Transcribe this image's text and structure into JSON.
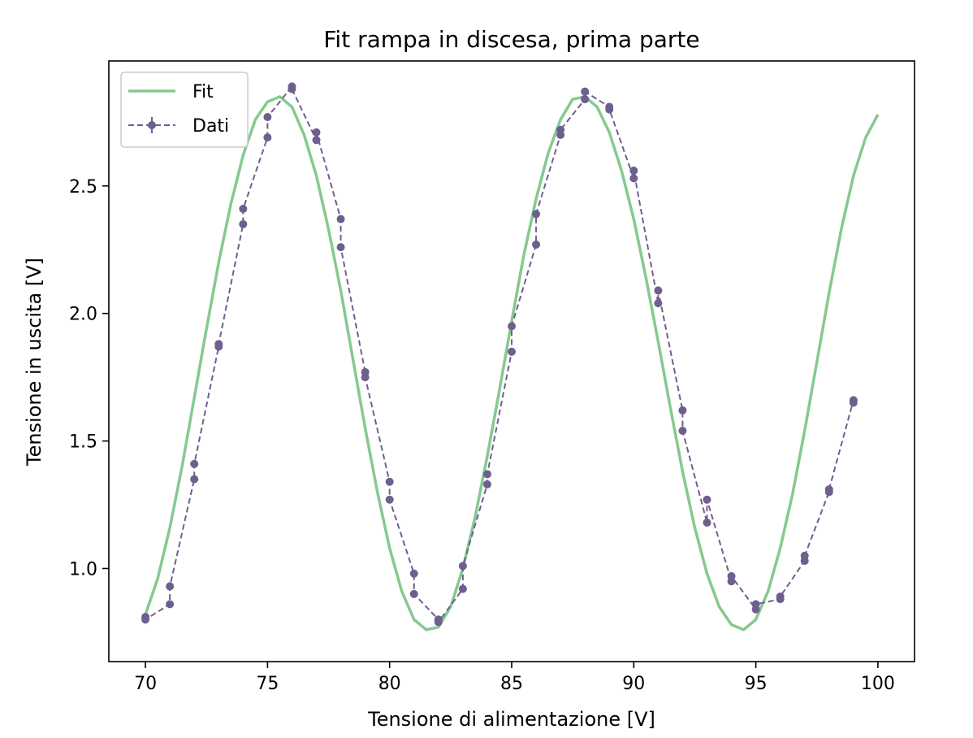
{
  "chart_data": {
    "type": "line",
    "title": "Fit rampa in discesa, prima parte",
    "xlabel": "Tensione di alimentazione [V]",
    "ylabel": "Tensione in uscita [V]",
    "xlim": [
      68.5,
      101.5
    ],
    "ylim": [
      0.635,
      2.99
    ],
    "xticks": [
      70,
      75,
      80,
      85,
      90,
      95,
      100
    ],
    "xtick_labels": [
      "70",
      "75",
      "80",
      "85",
      "90",
      "95",
      "100"
    ],
    "yticks": [
      1.0,
      1.5,
      2.0,
      2.5
    ],
    "ytick_labels": [
      "1.0",
      "1.5",
      "2.0",
      "2.5"
    ],
    "grid": false,
    "legend_position": "top-left",
    "legend": [
      "Fit",
      "Dati"
    ],
    "colors": {
      "fit": "#86c98f",
      "data": "#6f5f8f",
      "axes": "#000000"
    },
    "series": [
      {
        "name": "Fit",
        "style": "solid-line",
        "x": [
          70,
          70.5,
          71,
          71.5,
          72,
          72.5,
          73,
          73.5,
          74,
          74.5,
          75,
          75.5,
          76,
          76.5,
          77,
          77.5,
          78,
          78.5,
          79,
          79.5,
          80,
          80.5,
          81,
          81.5,
          82,
          82.5,
          83,
          83.5,
          84,
          84.5,
          85,
          85.5,
          86,
          86.5,
          87,
          87.5,
          88,
          88.5,
          89,
          89.5,
          90,
          90.5,
          91,
          91.5,
          92,
          92.5,
          93,
          93.5,
          94,
          94.5,
          95,
          95.5,
          96,
          96.5,
          97,
          97.5,
          98,
          98.5,
          99,
          99.5,
          100
        ],
        "y": [
          0.82,
          0.96,
          1.16,
          1.4,
          1.67,
          1.94,
          2.2,
          2.43,
          2.62,
          2.76,
          2.83,
          2.85,
          2.81,
          2.7,
          2.54,
          2.33,
          2.09,
          1.82,
          1.55,
          1.3,
          1.08,
          0.91,
          0.8,
          0.76,
          0.77,
          0.85,
          1.0,
          1.2,
          1.44,
          1.7,
          1.97,
          2.23,
          2.45,
          2.63,
          2.76,
          2.84,
          2.85,
          2.81,
          2.71,
          2.56,
          2.37,
          2.14,
          1.89,
          1.63,
          1.38,
          1.16,
          0.98,
          0.85,
          0.78,
          0.76,
          0.8,
          0.91,
          1.08,
          1.29,
          1.54,
          1.81,
          2.08,
          2.33,
          2.54,
          2.69,
          2.78
        ]
      },
      {
        "name": "Dati",
        "style": "dashed-line-with-markers",
        "x": [
          70,
          70,
          71,
          71,
          72,
          72,
          73,
          73,
          74,
          74,
          75,
          75,
          76,
          76,
          77,
          77,
          78,
          78,
          79,
          79,
          80,
          80,
          81,
          81,
          82,
          82,
          83,
          83,
          84,
          84,
          85,
          85,
          86,
          86,
          87,
          87,
          88,
          88,
          89,
          89,
          90,
          90,
          91,
          91,
          92,
          92,
          93,
          93,
          94,
          94,
          95,
          95,
          96,
          96,
          97,
          97,
          98,
          98,
          99,
          99
        ],
        "y": [
          0.81,
          0.8,
          0.86,
          0.93,
          1.35,
          1.41,
          1.87,
          1.88,
          2.35,
          2.41,
          2.69,
          2.77,
          2.89,
          2.88,
          2.68,
          2.71,
          2.37,
          2.26,
          1.77,
          1.75,
          1.34,
          1.27,
          0.98,
          0.9,
          0.8,
          0.79,
          0.92,
          1.01,
          1.33,
          1.37,
          1.85,
          1.95,
          2.27,
          2.39,
          2.7,
          2.72,
          2.84,
          2.87,
          2.81,
          2.8,
          2.53,
          2.56,
          2.04,
          2.09,
          1.62,
          1.54,
          1.18,
          1.27,
          0.95,
          0.97,
          0.84,
          0.86,
          0.88,
          0.89,
          1.03,
          1.05,
          1.3,
          1.31,
          1.66,
          1.65
        ]
      }
    ]
  }
}
